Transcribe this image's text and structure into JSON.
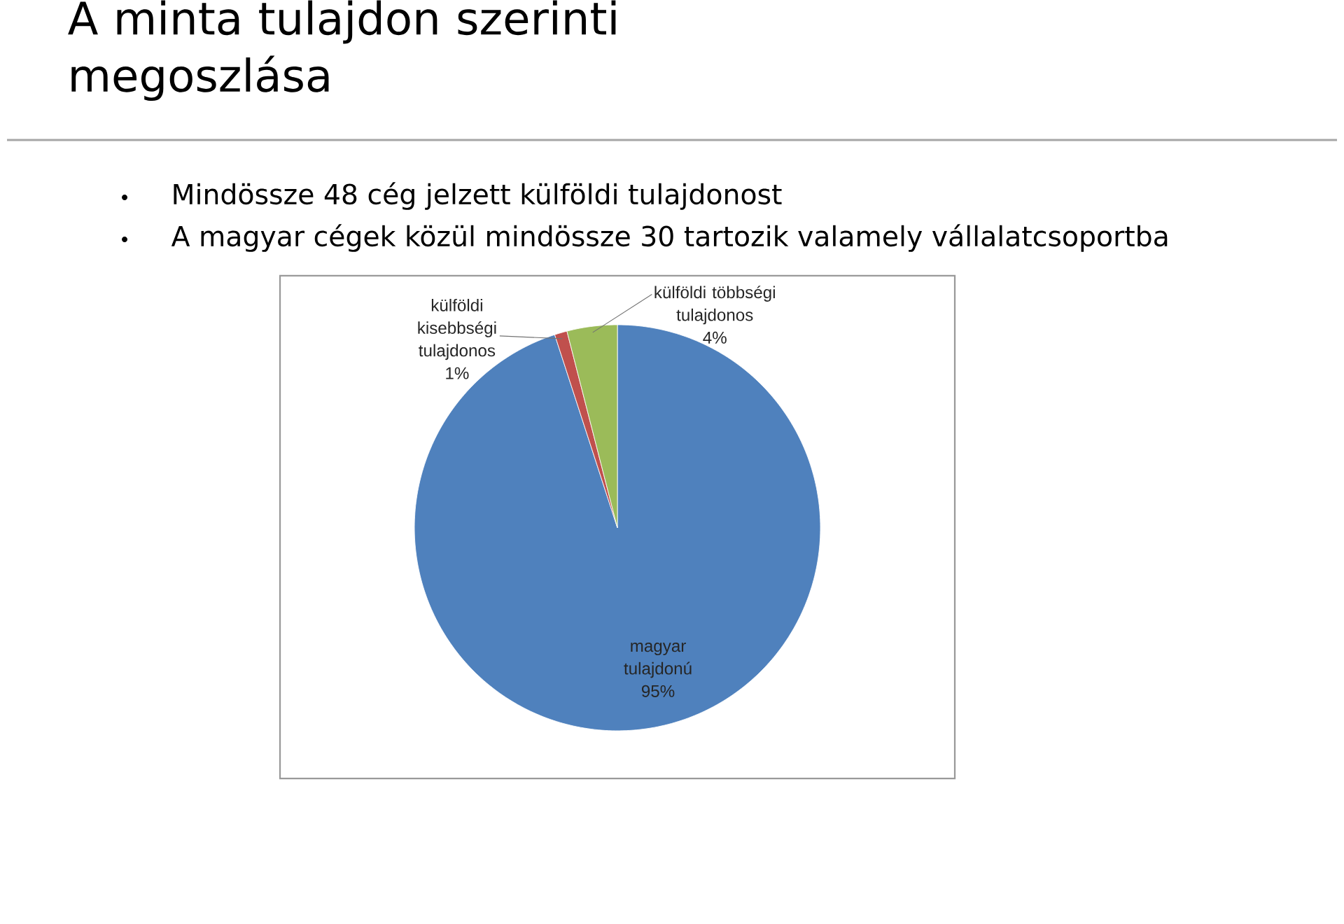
{
  "chart_data": {
    "type": "pie",
    "title": "A minta tulajdon szerinti megoszlása",
    "annotations": [
      "Mindössze 48 cég jelzett külföldi tulajdonost",
      "A magyar cégek közül mindössze 30 tartozik valamely vállalatcsoportba"
    ],
    "categories": [
      "magyar tulajdonú",
      "külföldi kisebbségi tulajdonos",
      "külföldi többségi tulajdonos"
    ],
    "values": [
      95,
      1,
      4
    ],
    "value_labels": [
      "95%",
      "1%",
      "4%"
    ],
    "colors": [
      "#4f81bd",
      "#c0504d",
      "#9bbb59"
    ]
  }
}
